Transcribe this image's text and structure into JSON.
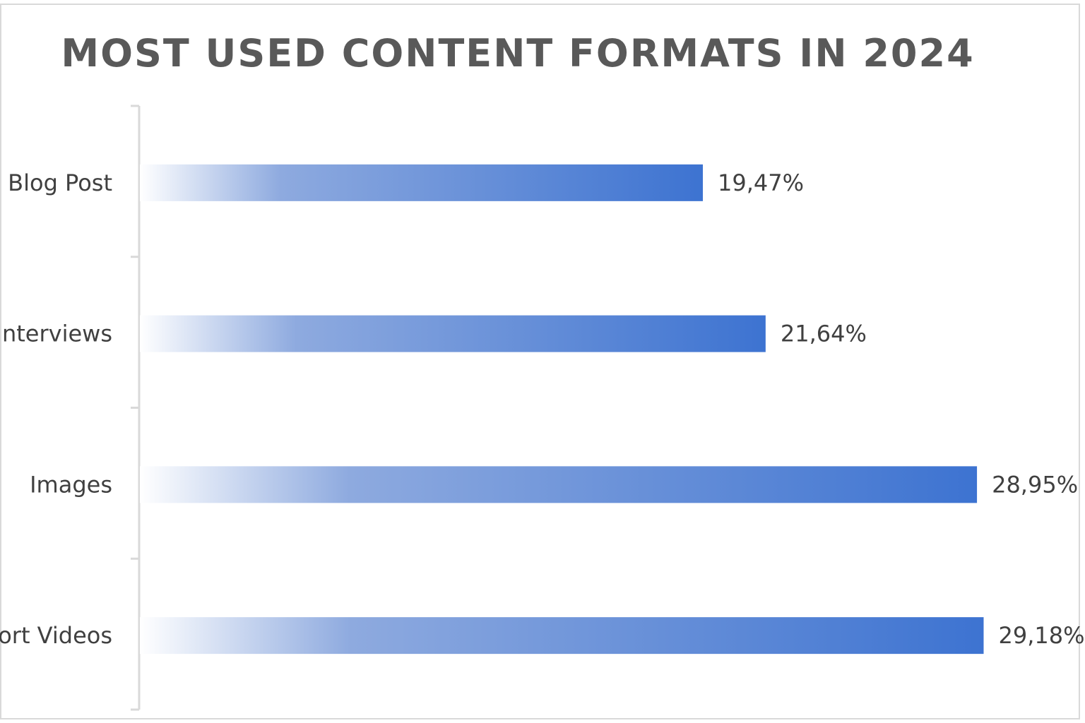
{
  "chart_data": {
    "type": "bar",
    "orientation": "horizontal",
    "title": "MOST USED CONTENT FORMATS IN 2024",
    "categories": [
      "Blog Post",
      "Interviews",
      "Images",
      "Short Videos"
    ],
    "values": [
      19.47,
      21.64,
      28.95,
      29.18
    ],
    "value_labels": [
      "19,47%",
      "21,64%",
      "28,95%",
      "29,18%"
    ],
    "xlim": [
      0,
      31
    ],
    "grid": false,
    "legend": "none",
    "colors": {
      "bar_start": "#ffffff",
      "bar_mid": "#8eaadf",
      "bar_end": "#3d73d1",
      "axis": "#d9d9d9",
      "text": "#404040",
      "title": "#595959"
    }
  }
}
